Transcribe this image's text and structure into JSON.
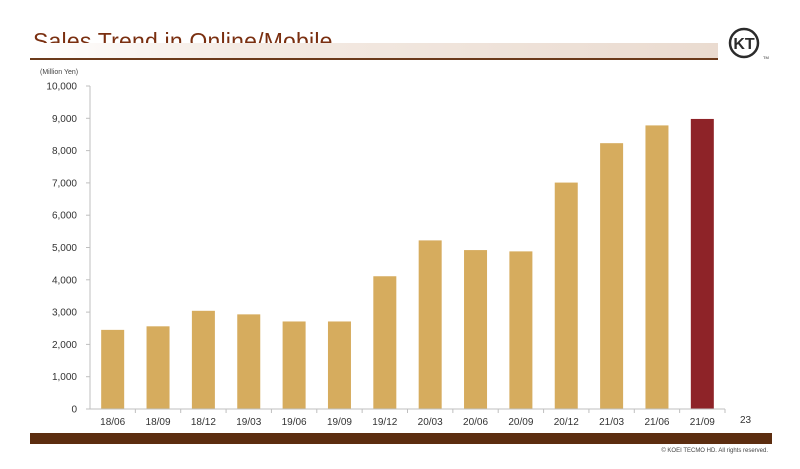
{
  "slide": {
    "title": "Sales Trend in Online/Mobile",
    "page_number": "23",
    "copyright": "© KOEI TECMO HD. All rights reserved.",
    "logo_text": "KT",
    "logo_mark": "TM"
  },
  "colors": {
    "title": "#7a2f10",
    "bar": "#d6ac5e",
    "highlight_bar": "#8e2328",
    "footer": "#5c2d10"
  },
  "chart_data": {
    "type": "bar",
    "title": "",
    "ylabel": "(Million Yen)",
    "xlabel": "",
    "categories": [
      "18/06",
      "18/09",
      "18/12",
      "19/03",
      "19/06",
      "19/09",
      "19/12",
      "20/03",
      "20/06",
      "20/09",
      "20/12",
      "21/03",
      "21/06",
      "21/09"
    ],
    "values": [
      2450,
      2560,
      3040,
      2930,
      2710,
      2710,
      4110,
      5220,
      4920,
      4880,
      7010,
      8230,
      8780,
      8980
    ],
    "highlight_index": 13,
    "ylim": [
      0,
      10000
    ],
    "yticks": [
      "0",
      "1,000",
      "2,000",
      "3,000",
      "4,000",
      "5,000",
      "6,000",
      "7,000",
      "8,000",
      "9,000",
      "10,000"
    ],
    "grid": false,
    "legend": "none"
  }
}
